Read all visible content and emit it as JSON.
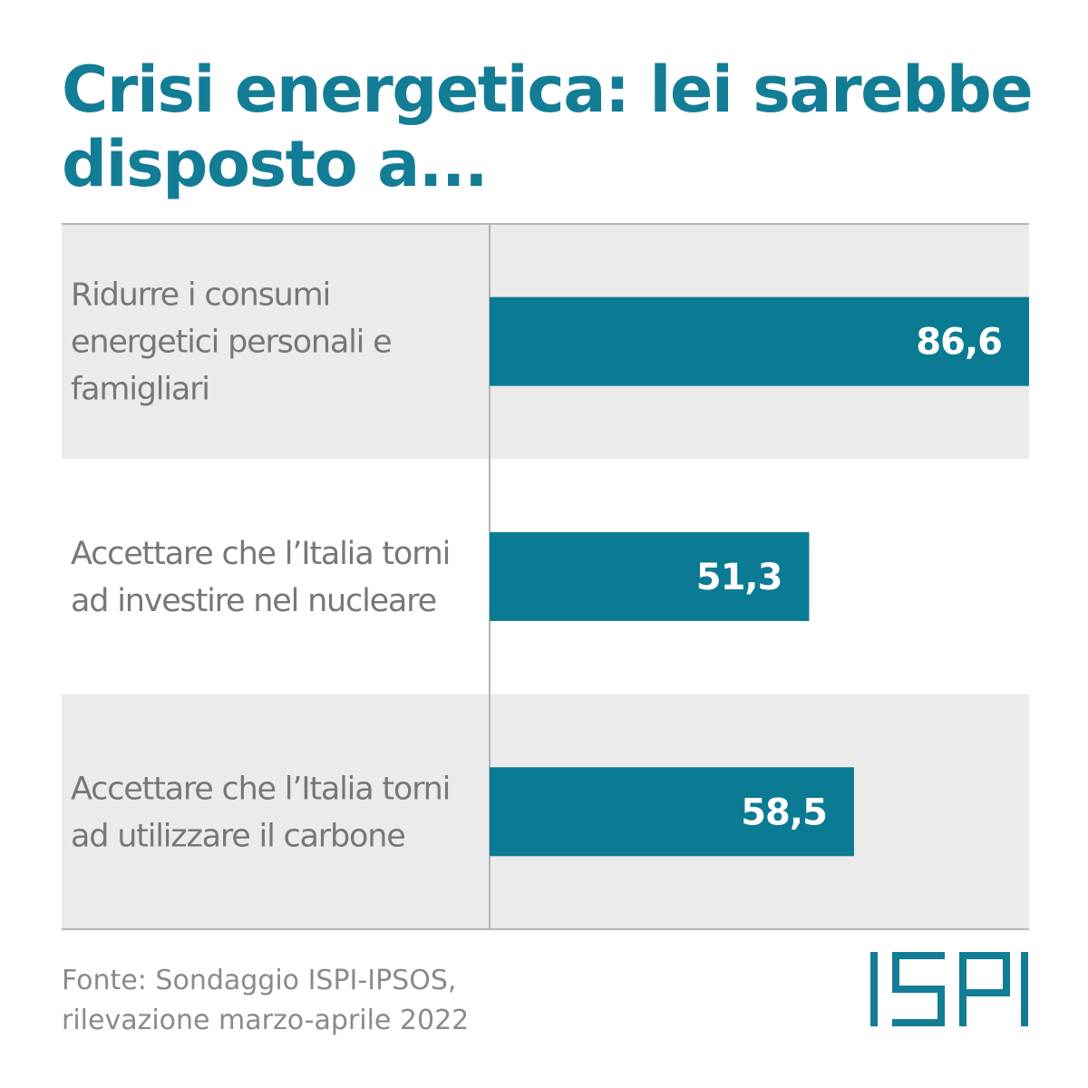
{
  "title": "Crisi energetica: lei sarebbe disposto a...",
  "source": {
    "line1": "Fonte: Sondaggio ISPI-IPSOS,",
    "line2": "rilevazione marzo-aprile 2022"
  },
  "logo": {
    "text": "ISPI",
    "color": "#137d96"
  },
  "colors": {
    "accent": "#0b7b93",
    "band": "#ebebeb",
    "label_text": "#777777",
    "value_text": "#ffffff",
    "rule": "#b4b4b4"
  },
  "chart_data": {
    "type": "bar",
    "orientation": "horizontal",
    "title": "Crisi energetica: lei sarebbe disposto a...",
    "categories": [
      [
        "Ridurre i consumi",
        "energetici personali e",
        "famigliari"
      ],
      [
        "Accettare che l’Italia torni",
        "ad investire nel nucleare"
      ],
      [
        "Accettare che l’Italia torni",
        "ad utilizzare il carbone"
      ]
    ],
    "values": [
      86.6,
      51.3,
      58.5
    ],
    "value_labels": [
      "86,6",
      "51,3",
      "58,5"
    ],
    "xlim": [
      0,
      86.6
    ],
    "grid": false,
    "legend": "none"
  }
}
